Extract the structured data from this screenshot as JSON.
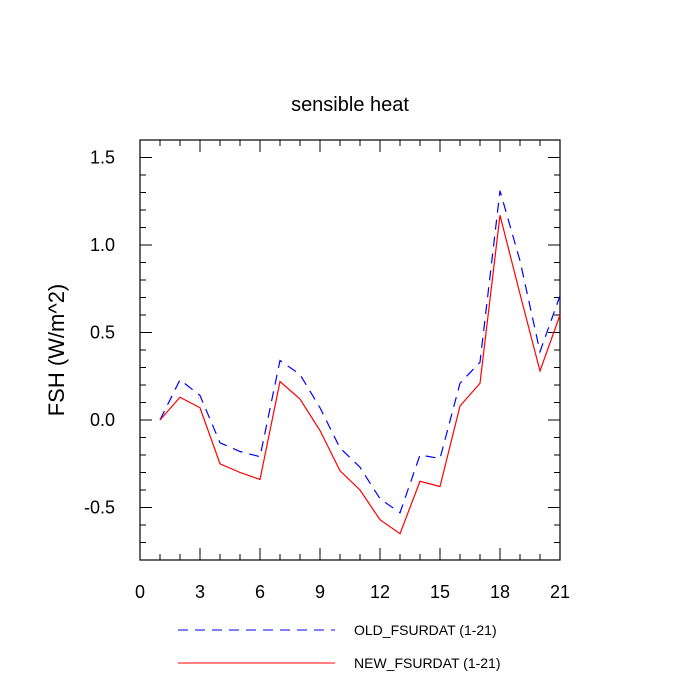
{
  "chart_data": {
    "type": "line",
    "title": "sensible heat",
    "xlabel": "",
    "ylabel": "FSH  (W/m^2)",
    "xlim": [
      0,
      21
    ],
    "ylim": [
      -0.8,
      1.6
    ],
    "xticks": [
      0,
      3,
      6,
      9,
      12,
      15,
      18,
      21
    ],
    "xtick_labels": [
      "0",
      "3",
      "6",
      "9",
      "12",
      "15",
      "18",
      "21"
    ],
    "yticks": [
      -0.5,
      0.0,
      0.5,
      1.0,
      1.5
    ],
    "ytick_labels": [
      "-0.5",
      "0.0",
      "0.5",
      "1.0",
      "1.5"
    ],
    "x": [
      1,
      2,
      3,
      4,
      5,
      6,
      7,
      8,
      9,
      10,
      11,
      12,
      13,
      14,
      15,
      16,
      17,
      18,
      19,
      20,
      21
    ],
    "series": [
      {
        "name": "OLD_FSURDAT (1-21)",
        "color": "#0000ff",
        "dash": "dashed",
        "values": [
          0.0,
          0.23,
          0.14,
          -0.13,
          -0.18,
          -0.21,
          0.34,
          0.26,
          0.07,
          -0.16,
          -0.27,
          -0.45,
          -0.53,
          -0.2,
          -0.22,
          0.21,
          0.33,
          1.31,
          0.91,
          0.39,
          0.71
        ]
      },
      {
        "name": "NEW_FSURDAT (1-21)",
        "color": "#ff0000",
        "dash": "solid",
        "values": [
          0.0,
          0.13,
          0.07,
          -0.25,
          -0.3,
          -0.34,
          0.22,
          0.12,
          -0.06,
          -0.29,
          -0.4,
          -0.57,
          -0.65,
          -0.35,
          -0.38,
          0.08,
          0.21,
          1.17,
          0.72,
          0.28,
          0.6
        ]
      }
    ],
    "legend_position": "bottom"
  }
}
